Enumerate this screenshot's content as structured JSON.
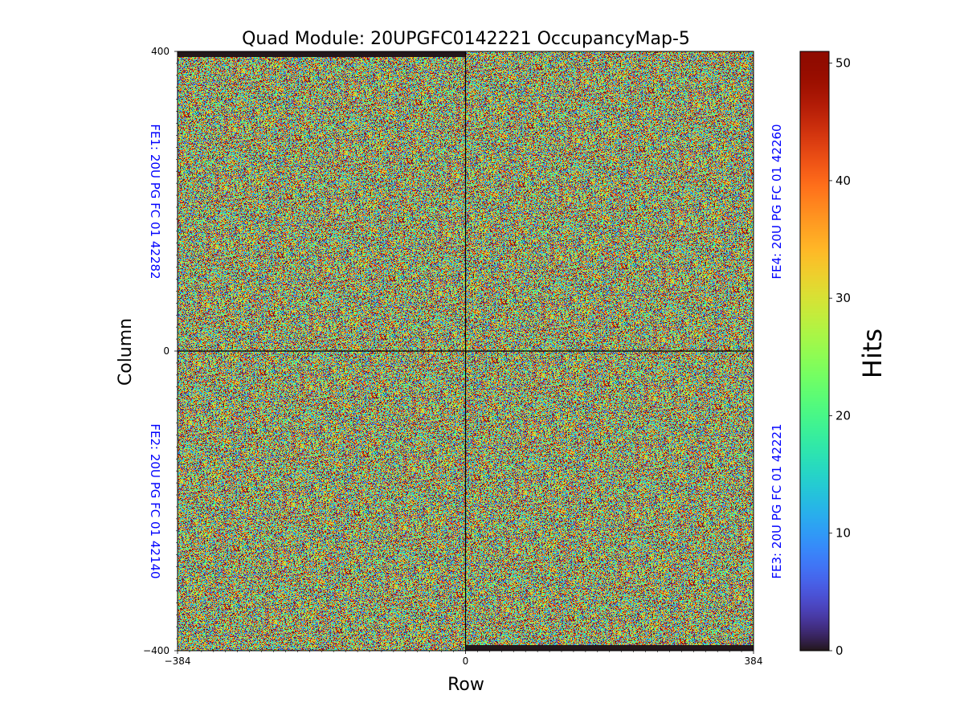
{
  "chart_data": {
    "type": "heatmap",
    "title": "Quad Module: 20UPGFC0142221 OccupancyMap-5",
    "xlabel": "Row",
    "ylabel": "Column",
    "xlim": [
      -384,
      384
    ],
    "ylim": [
      -400,
      400
    ],
    "x_ticks": [
      "−384",
      "0",
      "384"
    ],
    "y_ticks": [
      "400",
      "0",
      "−400"
    ],
    "x_tick_values": [
      -384,
      0,
      384
    ],
    "y_tick_values": [
      400,
      0,
      -400
    ],
    "colorbar": {
      "label": "Hits",
      "range": [
        0,
        51
      ],
      "ticks": [
        "0",
        "10",
        "20",
        "30",
        "40",
        "50"
      ],
      "tick_values": [
        0,
        10,
        20,
        30,
        40,
        50
      ],
      "colormap": "turbo"
    },
    "chips": [
      {
        "name": "FE1",
        "label": "FE1: 20U PG FC 01 42282",
        "quadrant": "top-left",
        "row_range": [
          -384,
          0
        ],
        "col_range": [
          0,
          400
        ],
        "empty_band": "top"
      },
      {
        "name": "FE2",
        "label": "FE2: 20U PG FC 01 42140",
        "quadrant": "bottom-left",
        "row_range": [
          -384,
          0
        ],
        "col_range": [
          -400,
          0
        ],
        "empty_band": "none"
      },
      {
        "name": "FE3",
        "label": "FE3: 20U PG FC 01 42221",
        "quadrant": "bottom-right",
        "row_range": [
          0,
          384
        ],
        "col_range": [
          -400,
          0
        ],
        "empty_band": "bottom"
      },
      {
        "name": "FE4",
        "label": "FE4: 20U PG FC 01 42260",
        "quadrant": "top-right",
        "row_range": [
          0,
          384
        ],
        "col_range": [
          0,
          400
        ],
        "empty_band": "none"
      }
    ],
    "distribution": "random uniform noise, 0-51 hits per pixel",
    "chip_label_color": "#0000ff",
    "divider_color": "#000000"
  }
}
